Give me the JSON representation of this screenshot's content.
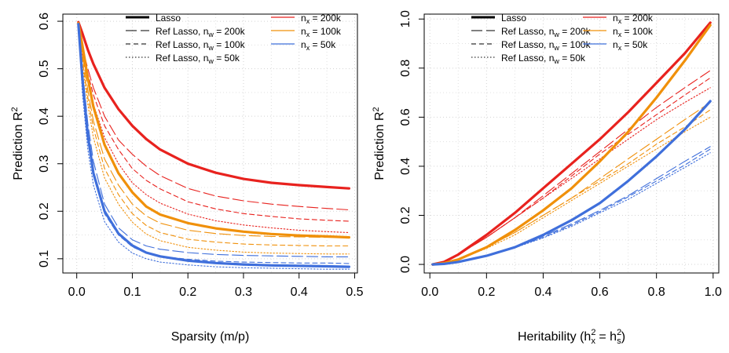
{
  "chart_data": [
    {
      "type": "line",
      "xlabel": "Sparsity (m/p)",
      "ylabel": "Prediction R²",
      "xlim": [
        0,
        0.5
      ],
      "ylim": [
        0.07,
        0.6
      ],
      "xticks": [
        0.0,
        0.1,
        0.2,
        0.3,
        0.4,
        0.5
      ],
      "xtick_labels": [
        "0.0",
        "0.1",
        "0.2",
        "0.3",
        "0.4",
        "0.5"
      ],
      "yticks": [
        0.1,
        0.2,
        0.3,
        0.4,
        0.5,
        0.6
      ],
      "ytick_labels": [
        "0.1",
        "0.2",
        "0.3",
        "0.4",
        "0.5",
        "0.6"
      ],
      "grid": true,
      "x": [
        0.003,
        0.01,
        0.02,
        0.03,
        0.05,
        0.075,
        0.1,
        0.125,
        0.15,
        0.2,
        0.25,
        0.3,
        0.35,
        0.4,
        0.45,
        0.49
      ],
      "series": [
        {
          "name": "Lasso, n_x = 200k",
          "color": "#e8221e",
          "style": "solid",
          "width": "thick",
          "values": [
            0.598,
            0.575,
            0.54,
            0.51,
            0.46,
            0.415,
            0.38,
            0.352,
            0.33,
            0.3,
            0.281,
            0.268,
            0.26,
            0.255,
            0.251,
            0.248
          ]
        },
        {
          "name": "Ref Lasso, n_w = 200k, n_x = 200k",
          "color": "#e8221e",
          "style": "longdash",
          "width": "thin",
          "values": [
            0.59,
            0.545,
            0.5,
            0.46,
            0.4,
            0.35,
            0.32,
            0.295,
            0.275,
            0.248,
            0.232,
            0.222,
            0.215,
            0.21,
            0.206,
            0.203
          ]
        },
        {
          "name": "Ref Lasso, n_w = 100k, n_x = 200k",
          "color": "#e8221e",
          "style": "dash",
          "width": "thin",
          "values": [
            0.59,
            0.54,
            0.49,
            0.445,
            0.38,
            0.33,
            0.29,
            0.265,
            0.247,
            0.22,
            0.205,
            0.195,
            0.189,
            0.184,
            0.181,
            0.179
          ]
        },
        {
          "name": "Ref Lasso, n_w = 50k, n_x = 200k",
          "color": "#e8221e",
          "style": "dot",
          "width": "thin",
          "values": [
            0.59,
            0.53,
            0.475,
            0.425,
            0.355,
            0.3,
            0.26,
            0.235,
            0.217,
            0.194,
            0.18,
            0.171,
            0.165,
            0.16,
            0.157,
            0.155
          ]
        },
        {
          "name": "Lasso, n_x = 100k",
          "color": "#f0900a",
          "style": "solid",
          "width": "thick",
          "values": [
            0.596,
            0.55,
            0.48,
            0.42,
            0.34,
            0.28,
            0.24,
            0.21,
            0.193,
            0.175,
            0.164,
            0.157,
            0.152,
            0.149,
            0.147,
            0.145
          ]
        },
        {
          "name": "Ref Lasso, n_w = 200k, n_x = 100k",
          "color": "#f0900a",
          "style": "longdash",
          "width": "thin",
          "values": [
            0.59,
            0.53,
            0.455,
            0.39,
            0.31,
            0.255,
            0.215,
            0.19,
            0.175,
            0.16,
            0.153,
            0.149,
            0.147,
            0.146,
            0.145,
            0.145
          ]
        },
        {
          "name": "Ref Lasso, n_w = 100k, n_x = 100k",
          "color": "#f0900a",
          "style": "dash",
          "width": "thin",
          "values": [
            0.59,
            0.52,
            0.44,
            0.375,
            0.29,
            0.235,
            0.195,
            0.17,
            0.155,
            0.141,
            0.135,
            0.131,
            0.129,
            0.128,
            0.127,
            0.127
          ]
        },
        {
          "name": "Ref Lasso, n_w = 50k, n_x = 100k",
          "color": "#f0900a",
          "style": "dot",
          "width": "thin",
          "values": [
            0.59,
            0.51,
            0.425,
            0.355,
            0.27,
            0.215,
            0.177,
            0.152,
            0.138,
            0.124,
            0.118,
            0.114,
            0.112,
            0.111,
            0.11,
            0.11
          ]
        },
        {
          "name": "Lasso, n_x = 50k",
          "color": "#3f6fdb",
          "style": "solid",
          "width": "thick",
          "values": [
            0.594,
            0.48,
            0.36,
            0.28,
            0.2,
            0.153,
            0.128,
            0.113,
            0.105,
            0.096,
            0.091,
            0.088,
            0.086,
            0.085,
            0.084,
            0.083
          ]
        },
        {
          "name": "Ref Lasso, n_w = 200k, n_x = 50k",
          "color": "#3f6fdb",
          "style": "longdash",
          "width": "thin",
          "values": [
            0.59,
            0.5,
            0.385,
            0.305,
            0.215,
            0.165,
            0.14,
            0.127,
            0.12,
            0.113,
            0.109,
            0.107,
            0.106,
            0.105,
            0.104,
            0.104
          ]
        },
        {
          "name": "Ref Lasso, n_w = 100k, n_x = 50k",
          "color": "#3f6fdb",
          "style": "dash",
          "width": "thin",
          "values": [
            0.59,
            0.47,
            0.355,
            0.275,
            0.195,
            0.15,
            0.125,
            0.112,
            0.105,
            0.099,
            0.095,
            0.093,
            0.092,
            0.091,
            0.091,
            0.09
          ]
        },
        {
          "name": "Ref Lasso, n_w = 50k, n_x = 50k",
          "color": "#3f6fdb",
          "style": "dot",
          "width": "thin",
          "values": [
            0.59,
            0.45,
            0.33,
            0.255,
            0.178,
            0.135,
            0.112,
            0.1,
            0.093,
            0.087,
            0.083,
            0.081,
            0.08,
            0.079,
            0.078,
            0.078
          ]
        }
      ],
      "legend": {
        "placement": "top",
        "line_items": [
          {
            "label": "Lasso",
            "style": "solid"
          },
          {
            "label": "Ref Lasso,  n",
            "sub": "w",
            "suffix": " = 200k",
            "style": "longdash"
          },
          {
            "label": "Ref Lasso,  n",
            "sub": "w",
            "suffix": " = 100k",
            "style": "dash"
          },
          {
            "label": "Ref Lasso,  n",
            "sub": "w",
            "suffix": " = 50k",
            "style": "dot"
          }
        ],
        "color_items": [
          {
            "label": "n",
            "sub": "x",
            "suffix": " = 200k",
            "color": "#e8221e"
          },
          {
            "label": "n",
            "sub": "x",
            "suffix": " = 100k",
            "color": "#f0900a"
          },
          {
            "label": "n",
            "sub": "x",
            "suffix": " = 50k",
            "color": "#3f6fdb"
          }
        ]
      }
    },
    {
      "type": "line",
      "xlabel": "Heritability (h²x = h²s)",
      "ylabel": "Prediction R²",
      "xlim": [
        0,
        1.0
      ],
      "ylim": [
        0,
        1.0
      ],
      "xticks": [
        0.0,
        0.2,
        0.4,
        0.6,
        0.8,
        1.0
      ],
      "xtick_labels": [
        "0.0",
        "0.2",
        "0.4",
        "0.6",
        "0.8",
        "1.0"
      ],
      "yticks": [
        0.0,
        0.2,
        0.4,
        0.6,
        0.8,
        1.0
      ],
      "ytick_labels": [
        "0.0",
        "0.2",
        "0.4",
        "0.6",
        "0.8",
        "1.0"
      ],
      "grid": true,
      "x": [
        0.01,
        0.05,
        0.1,
        0.2,
        0.3,
        0.4,
        0.5,
        0.6,
        0.7,
        0.8,
        0.9,
        0.99
      ],
      "series": [
        {
          "name": "Lasso, n_x = 200k",
          "color": "#e8221e",
          "style": "solid",
          "width": "thick",
          "values": [
            0.0,
            0.01,
            0.04,
            0.12,
            0.21,
            0.31,
            0.41,
            0.51,
            0.62,
            0.74,
            0.86,
            0.985
          ]
        },
        {
          "name": "Ref Lasso, n_w = 200k, n_x = 200k",
          "color": "#e8221e",
          "style": "longdash",
          "width": "thin",
          "values": [
            0.0,
            0.01,
            0.04,
            0.11,
            0.19,
            0.28,
            0.37,
            0.46,
            0.55,
            0.64,
            0.72,
            0.79
          ]
        },
        {
          "name": "Ref Lasso, n_w = 100k, n_x = 200k",
          "color": "#e8221e",
          "style": "dash",
          "width": "thin",
          "values": [
            0.0,
            0.01,
            0.04,
            0.11,
            0.19,
            0.27,
            0.36,
            0.45,
            0.53,
            0.61,
            0.69,
            0.76
          ]
        },
        {
          "name": "Ref Lasso, n_w = 50k, n_x = 200k",
          "color": "#e8221e",
          "style": "dot",
          "width": "thin",
          "values": [
            0.0,
            0.01,
            0.04,
            0.11,
            0.19,
            0.27,
            0.35,
            0.43,
            0.51,
            0.59,
            0.66,
            0.72
          ]
        },
        {
          "name": "Lasso, n_x = 100k",
          "color": "#f0900a",
          "style": "solid",
          "width": "thick",
          "values": [
            0.0,
            0.005,
            0.02,
            0.07,
            0.14,
            0.22,
            0.31,
            0.42,
            0.54,
            0.68,
            0.83,
            0.975
          ]
        },
        {
          "name": "Ref Lasso, n_w = 200k, n_x = 100k",
          "color": "#f0900a",
          "style": "longdash",
          "width": "thin",
          "values": [
            0.0,
            0.005,
            0.02,
            0.07,
            0.13,
            0.2,
            0.27,
            0.35,
            0.43,
            0.51,
            0.59,
            0.66
          ]
        },
        {
          "name": "Ref Lasso, n_w = 100k, n_x = 100k",
          "color": "#f0900a",
          "style": "dash",
          "width": "thin",
          "values": [
            0.0,
            0.005,
            0.02,
            0.07,
            0.13,
            0.2,
            0.27,
            0.34,
            0.41,
            0.49,
            0.56,
            0.63
          ]
        },
        {
          "name": "Ref Lasso, n_w = 50k, n_x = 100k",
          "color": "#f0900a",
          "style": "dot",
          "width": "thin",
          "values": [
            0.0,
            0.005,
            0.02,
            0.065,
            0.12,
            0.19,
            0.26,
            0.33,
            0.4,
            0.47,
            0.54,
            0.6
          ]
        },
        {
          "name": "Lasso, n_x = 50k",
          "color": "#3f6fdb",
          "style": "solid",
          "width": "thick",
          "values": [
            0.0,
            0.002,
            0.01,
            0.035,
            0.07,
            0.12,
            0.18,
            0.25,
            0.34,
            0.44,
            0.55,
            0.665
          ]
        },
        {
          "name": "Ref Lasso, n_w = 200k, n_x = 50k",
          "color": "#3f6fdb",
          "style": "longdash",
          "width": "thin",
          "values": [
            0.0,
            0.002,
            0.01,
            0.035,
            0.07,
            0.115,
            0.165,
            0.22,
            0.28,
            0.35,
            0.42,
            0.48
          ]
        },
        {
          "name": "Ref Lasso, n_w = 100k, n_x = 50k",
          "color": "#3f6fdb",
          "style": "dash",
          "width": "thin",
          "values": [
            0.0,
            0.002,
            0.01,
            0.035,
            0.07,
            0.11,
            0.16,
            0.215,
            0.275,
            0.34,
            0.405,
            0.47
          ]
        },
        {
          "name": "Ref Lasso, n_w = 50k, n_x = 50k",
          "color": "#3f6fdb",
          "style": "dot",
          "width": "thin",
          "values": [
            0.0,
            0.002,
            0.01,
            0.035,
            0.068,
            0.108,
            0.155,
            0.21,
            0.265,
            0.33,
            0.395,
            0.455
          ]
        }
      ],
      "legend": {
        "placement": "top-left",
        "line_items": [
          {
            "label": "Lasso",
            "style": "solid"
          },
          {
            "label": "Ref Lasso,  n",
            "sub": "w",
            "suffix": " = 200k",
            "style": "longdash"
          },
          {
            "label": "Ref Lasso,  n",
            "sub": "w",
            "suffix": " = 100k",
            "style": "dash"
          },
          {
            "label": "Ref Lasso,  n",
            "sub": "w",
            "suffix": " = 50k",
            "style": "dot"
          }
        ],
        "color_items": [
          {
            "label": "n",
            "sub": "x",
            "suffix": " = 200k",
            "color": "#e8221e"
          },
          {
            "label": "n",
            "sub": "x",
            "suffix": " = 100k",
            "color": "#f0900a"
          },
          {
            "label": "n",
            "sub": "x",
            "suffix": " = 50k",
            "color": "#3f6fdb"
          }
        ]
      }
    }
  ]
}
